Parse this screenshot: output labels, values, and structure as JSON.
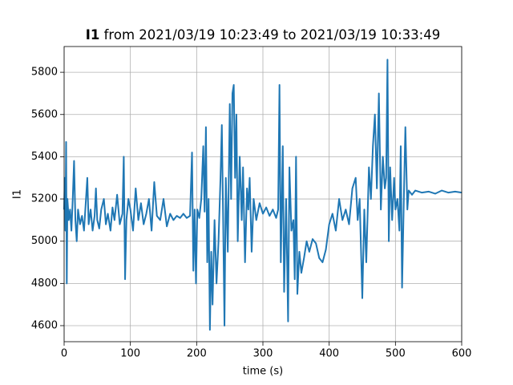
{
  "chart_data": {
    "type": "line",
    "title_variable": "I1",
    "title": "from 2021/03/19 10:23:49 to 2021/03/19 10:33:49",
    "x_label": "time (s)",
    "y_label": "I1",
    "color": "#1f77b4",
    "grid": true,
    "xlim": [
      0,
      600
    ],
    "xticks": [
      0,
      100,
      200,
      300,
      400,
      500,
      600
    ],
    "ylim": [
      4524,
      5922
    ],
    "yticks": [
      4600,
      4800,
      5000,
      5200,
      5400,
      5600,
      5800
    ],
    "x": [
      0,
      1,
      2,
      3,
      4,
      5,
      7,
      9,
      11,
      13,
      15,
      17,
      19,
      21,
      24,
      27,
      30,
      33,
      35,
      37,
      40,
      43,
      46,
      48,
      50,
      53,
      56,
      60,
      63,
      66,
      70,
      73,
      76,
      80,
      84,
      88,
      90,
      92,
      94,
      97,
      100,
      104,
      108,
      112,
      116,
      120,
      124,
      128,
      132,
      136,
      140,
      145,
      150,
      155,
      160,
      165,
      170,
      175,
      180,
      185,
      190,
      193,
      195,
      197,
      199,
      201,
      204,
      207,
      210,
      212,
      214,
      216,
      218,
      220,
      222,
      224,
      227,
      230,
      233,
      236,
      238,
      240,
      242,
      244,
      247,
      250,
      252,
      254,
      256,
      258,
      260,
      262,
      265,
      268,
      270,
      273,
      276,
      278,
      280,
      283,
      286,
      290,
      295,
      300,
      305,
      310,
      315,
      320,
      323,
      325,
      327,
      330,
      332,
      335,
      338,
      340,
      343,
      346,
      348,
      350,
      352,
      355,
      358,
      362,
      366,
      370,
      375,
      380,
      385,
      390,
      395,
      400,
      405,
      410,
      415,
      420,
      425,
      430,
      435,
      440,
      443,
      446,
      450,
      453,
      456,
      460,
      463,
      466,
      469,
      472,
      475,
      478,
      481,
      484,
      486,
      488,
      490,
      492,
      495,
      498,
      500,
      503,
      506,
      508,
      510,
      513,
      515,
      518,
      520,
      525,
      530,
      540,
      550,
      560,
      570,
      580,
      590,
      600
    ],
    "values": [
      5150,
      5300,
      5050,
      5470,
      4800,
      5200,
      5100,
      5150,
      5050,
      5200,
      5380,
      5100,
      5000,
      5150,
      5080,
      5120,
      5050,
      5200,
      5300,
      5080,
      5150,
      5050,
      5120,
      5250,
      5100,
      5060,
      5150,
      5200,
      5080,
      5130,
      5050,
      5160,
      5100,
      5220,
      5080,
      5130,
      5400,
      4820,
      5100,
      5200,
      5150,
      5050,
      5250,
      5100,
      5180,
      5080,
      5130,
      5200,
      5050,
      5280,
      5120,
      5100,
      5200,
      5070,
      5130,
      5100,
      5120,
      5110,
      5130,
      5110,
      5120,
      5420,
      4860,
      5150,
      4800,
      5150,
      5110,
      5200,
      5450,
      5140,
      5540,
      4900,
      5200,
      4580,
      4950,
      4700,
      5100,
      4800,
      5000,
      5300,
      5550,
      5100,
      4600,
      5300,
      4950,
      5650,
      5200,
      5700,
      5740,
      5300,
      5600,
      5000,
      5400,
      5100,
      5350,
      4900,
      5250,
      5150,
      5300,
      4950,
      5200,
      5100,
      5180,
      5130,
      5160,
      5120,
      5150,
      5110,
      5150,
      5740,
      4900,
      5450,
      4760,
      5200,
      4620,
      5350,
      5050,
      5100,
      4820,
      5400,
      4750,
      4950,
      4850,
      4920,
      5000,
      4950,
      5010,
      4990,
      4920,
      4900,
      4960,
      5080,
      5130,
      5050,
      5200,
      5100,
      5150,
      5080,
      5250,
      5300,
      5100,
      5200,
      4730,
      5150,
      4900,
      5350,
      5200,
      5450,
      5600,
      5250,
      5700,
      5150,
      5400,
      5250,
      5300,
      5860,
      5000,
      5350,
      5100,
      5300,
      5150,
      5200,
      5050,
      5450,
      4780,
      5250,
      5540,
      5150,
      5240,
      5220,
      5240,
      5230,
      5235,
      5225,
      5240,
      5230,
      5235,
      5230
    ]
  }
}
